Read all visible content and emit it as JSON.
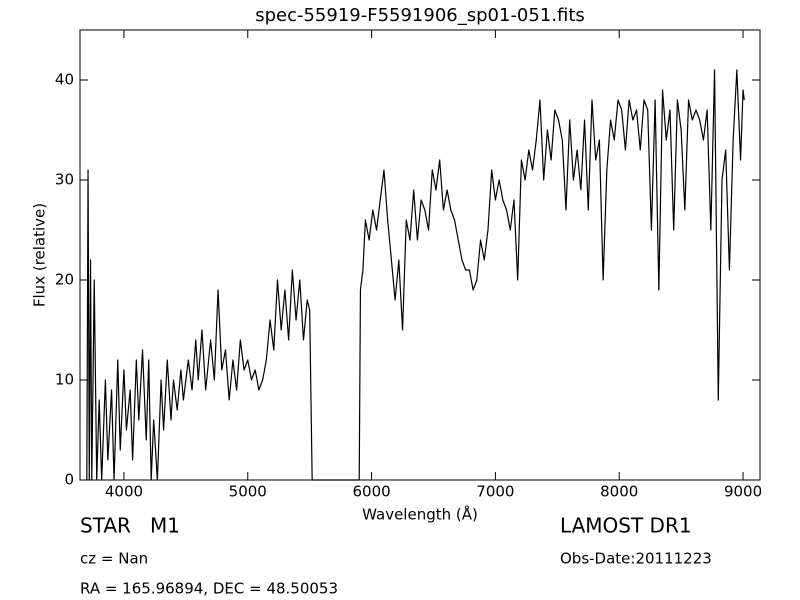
{
  "chart_data": {
    "type": "line",
    "title": "spec-55919-F5591906_sp01-051.fits",
    "xlabel": "Wavelength (Å)",
    "ylabel": "Flux (relative)",
    "color": "#000000",
    "xlim": [
      3645,
      9137
    ],
    "ylim": [
      0,
      45
    ],
    "xticks": [
      4000,
      5000,
      6000,
      7000,
      8000,
      9000
    ],
    "yticks": [
      0,
      10,
      20,
      30,
      40
    ],
    "annotations": [
      "STAR   M1",
      "cz = Nan",
      "RA = 165.96894, DEC = 48.50053",
      "LAMOST DR1",
      "Obs-Date:20111223"
    ],
    "x": [
      3700,
      3710,
      3720,
      3730,
      3740,
      3760,
      3780,
      3800,
      3820,
      3850,
      3870,
      3900,
      3920,
      3950,
      3970,
      4000,
      4020,
      4050,
      4070,
      4100,
      4120,
      4150,
      4180,
      4200,
      4220,
      4240,
      4270,
      4300,
      4320,
      4350,
      4380,
      4400,
      4430,
      4460,
      4480,
      4520,
      4550,
      4580,
      4600,
      4630,
      4660,
      4700,
      4730,
      4760,
      4790,
      4820,
      4850,
      4880,
      4910,
      4940,
      4970,
      5000,
      5030,
      5060,
      5090,
      5120,
      5150,
      5180,
      5210,
      5240,
      5270,
      5300,
      5330,
      5360,
      5390,
      5420,
      5450,
      5480,
      5500,
      5520,
      5600,
      5700,
      5800,
      5900,
      5910,
      5930,
      5950,
      5980,
      6010,
      6040,
      6070,
      6100,
      6130,
      6160,
      6190,
      6220,
      6250,
      6280,
      6310,
      6340,
      6370,
      6400,
      6430,
      6460,
      6490,
      6520,
      6550,
      6580,
      6610,
      6640,
      6670,
      6700,
      6730,
      6760,
      6790,
      6820,
      6850,
      6880,
      6910,
      6940,
      6970,
      7000,
      7030,
      7060,
      7090,
      7120,
      7150,
      7180,
      7210,
      7240,
      7270,
      7300,
      7330,
      7360,
      7390,
      7420,
      7450,
      7480,
      7510,
      7540,
      7570,
      7600,
      7630,
      7660,
      7690,
      7720,
      7750,
      7780,
      7810,
      7840,
      7870,
      7900,
      7930,
      7960,
      7990,
      8020,
      8050,
      8080,
      8110,
      8140,
      8170,
      8200,
      8230,
      8260,
      8290,
      8320,
      8350,
      8380,
      8410,
      8440,
      8470,
      8500,
      8530,
      8560,
      8590,
      8620,
      8650,
      8680,
      8710,
      8740,
      8770,
      8800,
      8830,
      8860,
      8890,
      8920,
      8950,
      8980,
      9000,
      9010
    ],
    "values": [
      0,
      31,
      0,
      22,
      0,
      20,
      0,
      8,
      0,
      10,
      2,
      9,
      0,
      12,
      3,
      11,
      5,
      9,
      2,
      12,
      6,
      13,
      4,
      12,
      0,
      6,
      0,
      10,
      5,
      12,
      6,
      10,
      7,
      11,
      8,
      12,
      9,
      14,
      10,
      15,
      9,
      14,
      10,
      19,
      11,
      13,
      8,
      12,
      9,
      14,
      11,
      12,
      10,
      11,
      9,
      10,
      12,
      16,
      13,
      20,
      15,
      19,
      14,
      21,
      16,
      20,
      14,
      18,
      17,
      0,
      0,
      0,
      0,
      0,
      19,
      21,
      26,
      24,
      27,
      25,
      28,
      31,
      26,
      22,
      18,
      22,
      15,
      26,
      24,
      29,
      24,
      28,
      27,
      25,
      31,
      29,
      32,
      27,
      29,
      27,
      26,
      24,
      22,
      21,
      21,
      19,
      20,
      24,
      22,
      25,
      31,
      28,
      30,
      28,
      27,
      25,
      28,
      20,
      32,
      30,
      33,
      31,
      34,
      38,
      30,
      35,
      32,
      37,
      36,
      34,
      27,
      36,
      30,
      33,
      29,
      36,
      27,
      38,
      32,
      34,
      20,
      31,
      36,
      34,
      38,
      37,
      33,
      38,
      36,
      37,
      33,
      38,
      37,
      25,
      38,
      19,
      39,
      34,
      37,
      25,
      38,
      35,
      27,
      38,
      36,
      37,
      36,
      34,
      37,
      25,
      41,
      8,
      30,
      33,
      21,
      34,
      41,
      32,
      39,
      38
    ]
  }
}
